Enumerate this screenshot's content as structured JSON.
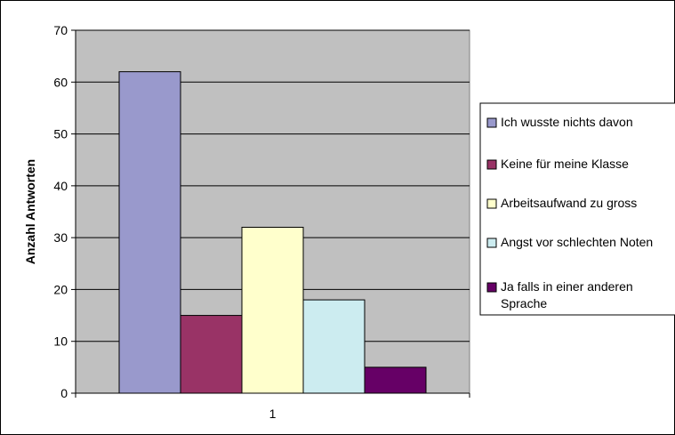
{
  "chart_data": {
    "type": "bar",
    "title": "",
    "xlabel": "",
    "ylabel": "Anzahl Antworten",
    "categories": [
      "1"
    ],
    "ylim": [
      0,
      70
    ],
    "yticks": [
      0,
      10,
      20,
      30,
      40,
      50,
      60,
      70
    ],
    "grid": true,
    "legend_position": "right",
    "plot_background": "#c0c0c0",
    "series": [
      {
        "name": "Ich wusste nichts davon",
        "values": [
          62
        ],
        "color": "#9999cc"
      },
      {
        "name": "Keine für meine Klasse",
        "values": [
          15
        ],
        "color": "#993366"
      },
      {
        "name": "Arbeitsaufwand zu gross",
        "values": [
          32
        ],
        "color": "#ffffcc"
      },
      {
        "name": "Angst vor schlechten Noten",
        "values": [
          18
        ],
        "color": "#ccecf0"
      },
      {
        "name": "Ja falls in einer anderen Sprache",
        "values": [
          5
        ],
        "color": "#660066"
      }
    ]
  }
}
